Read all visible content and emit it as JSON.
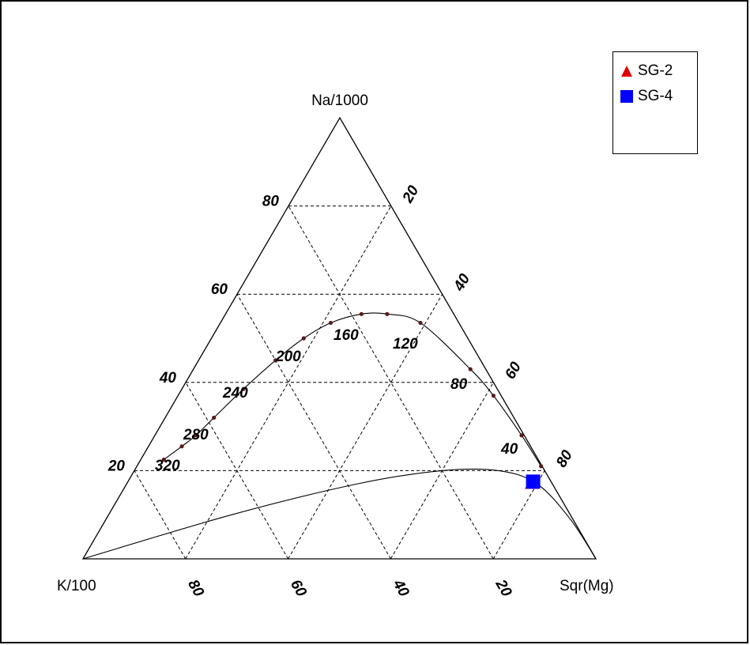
{
  "chart_data": {
    "type": "ternary",
    "vertices": {
      "top": "Na/1000",
      "left": "K/100",
      "right": "Sqr(Mg)"
    },
    "grid": true,
    "grid_lines": [
      20,
      40,
      60,
      80
    ],
    "axis_ticks": {
      "left_edge": [
        "80",
        "60",
        "40",
        "20"
      ],
      "right_edge": [
        "20",
        "40",
        "60",
        "80"
      ],
      "bottom_edge": [
        "80",
        "60",
        "40",
        "20"
      ]
    },
    "equilibrium_curve": {
      "temperature_labels": [
        "320",
        "280",
        "240",
        "200",
        "160",
        "120",
        "80",
        "40"
      ],
      "points": [
        {
          "na": 22.5,
          "k": 73.0,
          "mg": 4.5
        },
        {
          "na": 25.5,
          "k": 68.0,
          "mg": 6.5
        },
        {
          "na": 28.0,
          "k": 64.0,
          "mg": 8.0
        },
        {
          "na": 32.0,
          "k": 58.5,
          "mg": 9.5
        },
        {
          "na": 38.5,
          "k": 49.5,
          "mg": 12.0
        },
        {
          "na": 45.0,
          "k": 40.0,
          "mg": 15.0
        },
        {
          "na": 50.0,
          "k": 32.0,
          "mg": 18.0
        },
        {
          "na": 53.5,
          "k": 25.0,
          "mg": 21.5
        },
        {
          "na": 55.5,
          "k": 18.0,
          "mg": 26.5
        },
        {
          "na": 55.5,
          "k": 13.0,
          "mg": 31.5
        },
        {
          "na": 53.5,
          "k": 7.5,
          "mg": 39.0
        },
        {
          "na": 43.0,
          "k": 3.0,
          "mg": 54.0
        },
        {
          "na": 37.0,
          "k": 1.5,
          "mg": 61.5
        },
        {
          "na": 28.0,
          "k": 0.5,
          "mg": 71.5
        },
        {
          "na": 21.0,
          "k": 0.2,
          "mg": 78.8
        }
      ]
    },
    "lower_curve": {
      "points": [
        {
          "na": 0.0,
          "k": 100.0,
          "mg": 0.0
        },
        {
          "na": 10.0,
          "k": 66.0,
          "mg": 24.0
        },
        {
          "na": 17.0,
          "k": 38.0,
          "mg": 45.0
        },
        {
          "na": 20.0,
          "k": 20.0,
          "mg": 60.0
        },
        {
          "na": 20.0,
          "k": 9.0,
          "mg": 71.0
        },
        {
          "na": 17.0,
          "k": 3.0,
          "mg": 80.0
        },
        {
          "na": 9.0,
          "k": 0.5,
          "mg": 90.5
        },
        {
          "na": 0.0,
          "k": 0.0,
          "mg": 100.0
        }
      ]
    },
    "series": [
      {
        "name": "SG-2",
        "marker": "triangle",
        "color": "#e00000",
        "points": [
          {
            "na": 17.0,
            "k": 4.0,
            "mg": 79.0
          }
        ]
      },
      {
        "name": "SG-4",
        "marker": "square",
        "color": "#0000ff",
        "points": [
          {
            "na": 17.5,
            "k": 3.5,
            "mg": 79.0
          }
        ]
      }
    ],
    "legend_placement": "top-right"
  }
}
